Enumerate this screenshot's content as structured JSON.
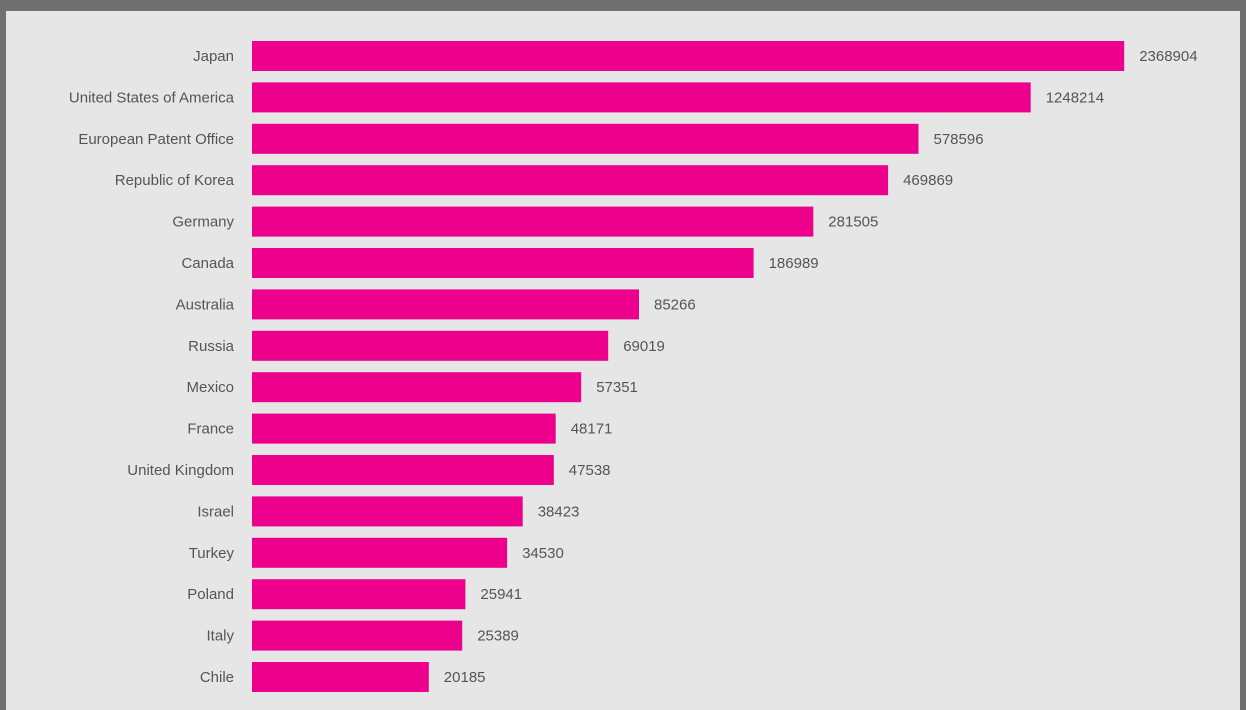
{
  "chart_data": {
    "type": "bar",
    "orientation": "horizontal",
    "title": "",
    "xlabel": "",
    "ylabel": "",
    "categories": [
      "Japan",
      "United States of America",
      "European Patent Office",
      "Republic of Korea",
      "Germany",
      "Canada",
      "Australia",
      "Russia",
      "Mexico",
      "France",
      "United Kingdom",
      "Israel",
      "Turkey",
      "Poland",
      "Italy",
      "Chile"
    ],
    "values": [
      2368904,
      1248214,
      578596,
      469869,
      281505,
      186989,
      85266,
      69019,
      57351,
      48171,
      47538,
      38423,
      34530,
      25941,
      25389,
      20185
    ],
    "value_labels": [
      "2368904",
      "1248214",
      "578596",
      "469869",
      "281505",
      "186989",
      "85266",
      "69019",
      "57351",
      "48171",
      "47538",
      "38423",
      "34530",
      "25941",
      "25389",
      "20185"
    ],
    "scale": "log",
    "grid": false,
    "legend": "none",
    "colors": {
      "bar": "#ec008c",
      "background": "#e6e6e6",
      "frame": "#707070",
      "text": "#555555"
    }
  }
}
